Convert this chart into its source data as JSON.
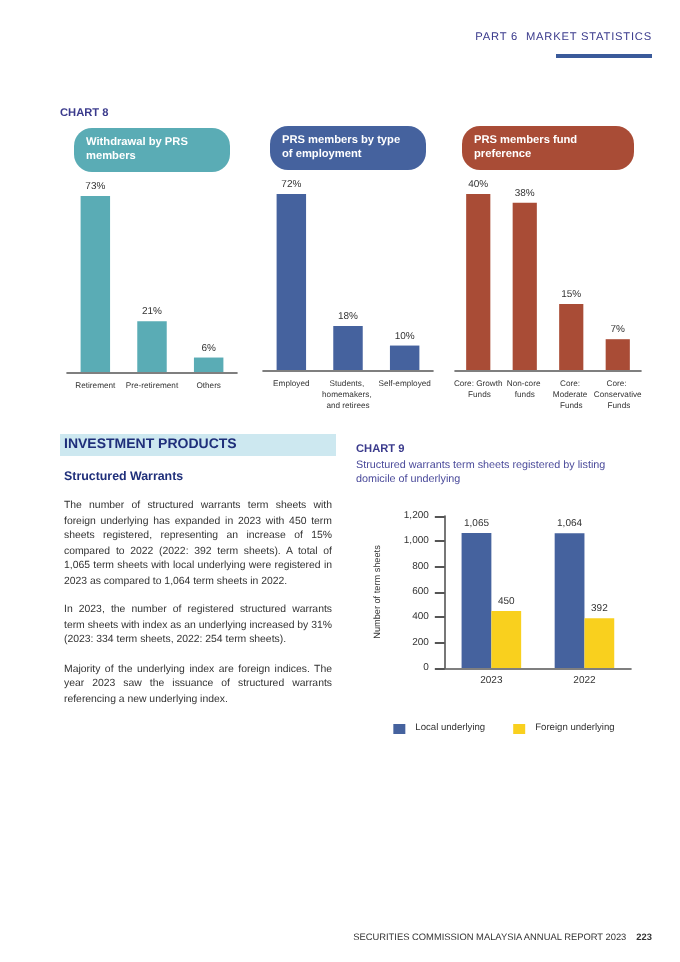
{
  "chart_data": [
    {
      "type": "other",
      "title": "PART 6  MARKET STATISTICS"
    },
    {
      "type": "bar",
      "title": "Withdrawal by PRS members",
      "annotations": [
        "CHART 8"
      ],
      "categories": [
        "Retirement",
        "Pre-retirement",
        "Others"
      ],
      "values": [
        73,
        21,
        6
      ],
      "value_labels": [
        "73%",
        "21%",
        "6%"
      ],
      "color": "#5aacb5",
      "tick_labels": "x"
    },
    {
      "type": "bar",
      "title": "PRS members by type of employment",
      "categories": [
        "Employed",
        "Students, homemakers, and retirees",
        "Self-employed"
      ],
      "values": [
        72,
        18,
        10
      ],
      "value_labels": [
        "72%",
        "18%",
        "10%"
      ],
      "color": "#45629e",
      "tick_labels": "x"
    },
    {
      "type": "bar",
      "title": "PRS members fund preference",
      "categories": [
        "Core: Growth Funds",
        "Non-core funds",
        "Core: Moderate Funds",
        "Core: Conservative Funds"
      ],
      "values": [
        40,
        38,
        15,
        7
      ],
      "value_labels": [
        "40%",
        "38%",
        "15%",
        "7%"
      ],
      "color": "#a94c36",
      "tick_labels": "x"
    },
    {
      "type": "other",
      "title": "INVESTMENT PRODUCTS",
      "subtitle": "Structured Warrants",
      "annotations": [
        "The number of structured warrants term sheets with foreign underlying has expanded in 2023 with 450 term sheets registered, representing an increase of 15% compared to 2022 (2022: 392 term sheets). A total of 1,065 term sheets with local underlying were registered in 2023 as compared to 1,064 term sheets in 2022.",
        "In 2023, the number of registered structured warrants term sheets with index as an underlying increased by 31% (2023: 334 term sheets, 2022: 254 term sheets).",
        "Majority of the underlying index are foreign indices. The year 2023 saw the issuance of structured warrants referencing a new underlying index."
      ]
    },
    {
      "type": "bar",
      "title": "Structured warrants term sheets registered by listing domicile of underlying",
      "ylabel": "Number of term sheets",
      "categories": [
        "2023",
        "2022"
      ],
      "ylim": [
        0,
        1200
      ],
      "yticks": [
        0,
        200,
        400,
        600,
        800,
        {
          "value": 1000,
          "label": "1,000"
        },
        {
          "value": 1200,
          "label": "1,200"
        }
      ],
      "legend": "bottom",
      "annotations": [
        "CHART 9",
        "SECURITIES COMMISSION MALAYSIA ANNUAL REPORT 2023",
        "223"
      ],
      "series": [
        {
          "name": "Local underlying",
          "color": "#45629e",
          "values": [
            1065,
            1064
          ],
          "value_labels": [
            "1,065",
            "1,064"
          ]
        },
        {
          "name": "Foreign underlying",
          "color": "#f9d01e",
          "values": [
            450,
            392
          ],
          "value_labels": [
            "450",
            "392"
          ]
        }
      ]
    }
  ]
}
